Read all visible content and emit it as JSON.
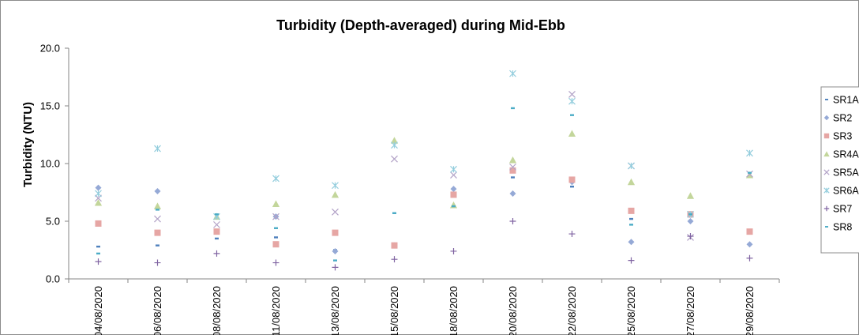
{
  "chart_data": {
    "type": "scatter",
    "title": "Turbidity (Depth-averaged) during Mid-Ebb",
    "xlabel": "",
    "ylabel": "Turbidity (NTU)",
    "ylim": [
      0,
      20
    ],
    "yticks": [
      "0.0",
      "5.0",
      "10.0",
      "15.0",
      "20.0"
    ],
    "categories": [
      "04/08/2020",
      "06/08/2020",
      "08/08/2020",
      "11/08/2020",
      "13/08/2020",
      "15/08/2020",
      "18/08/2020",
      "20/08/2020",
      "22/08/2020",
      "25/08/2020",
      "27/08/2020",
      "29/08/2020"
    ],
    "grid": false,
    "legend_position": "right",
    "series": [
      {
        "name": "SR1A",
        "marker": "dash",
        "color": "#4f81bd",
        "values": [
          2.8,
          2.9,
          3.5,
          3.6,
          2.5,
          5.7,
          6.3,
          8.8,
          8.0,
          5.2,
          5.4,
          3.0
        ]
      },
      {
        "name": "SR2",
        "marker": "diamond",
        "color": "#95a9d6",
        "values": [
          7.9,
          7.6,
          4.1,
          5.4,
          2.4,
          2.9,
          7.8,
          7.4,
          8.4,
          3.2,
          5.0,
          3.0
        ]
      },
      {
        "name": "SR3",
        "marker": "square",
        "color": "#e6a6a4",
        "values": [
          4.8,
          4.0,
          4.1,
          3.0,
          4.0,
          2.9,
          7.3,
          9.4,
          8.6,
          5.9,
          5.6,
          4.1
        ]
      },
      {
        "name": "SR4A",
        "marker": "triangle",
        "color": "#c3d69b",
        "values": [
          6.6,
          6.3,
          5.4,
          6.5,
          7.3,
          12.0,
          6.4,
          10.3,
          12.6,
          8.4,
          7.2,
          9.0
        ]
      },
      {
        "name": "SR5A",
        "marker": "x",
        "color": "#b2a2c7",
        "values": [
          7.0,
          5.2,
          4.7,
          5.4,
          5.8,
          10.4,
          9.0,
          9.7,
          16.0,
          9.8,
          3.6,
          9.1
        ]
      },
      {
        "name": "SR6A",
        "marker": "star",
        "color": "#93cddd",
        "values": [
          7.4,
          11.3,
          5.4,
          8.7,
          8.1,
          11.6,
          9.5,
          17.8,
          15.4,
          9.8,
          5.6,
          10.9
        ]
      },
      {
        "name": "SR7",
        "marker": "plus",
        "color": "#8064a2",
        "values": [
          1.5,
          1.4,
          2.2,
          1.4,
          1.0,
          1.7,
          2.4,
          5.0,
          3.9,
          1.6,
          3.7,
          1.8
        ]
      },
      {
        "name": "SR8",
        "marker": "dash",
        "color": "#4bacc6",
        "values": [
          2.2,
          6.0,
          5.6,
          4.4,
          1.6,
          5.7,
          6.3,
          14.8,
          14.2,
          4.7,
          5.6,
          9.2
        ]
      }
    ]
  }
}
